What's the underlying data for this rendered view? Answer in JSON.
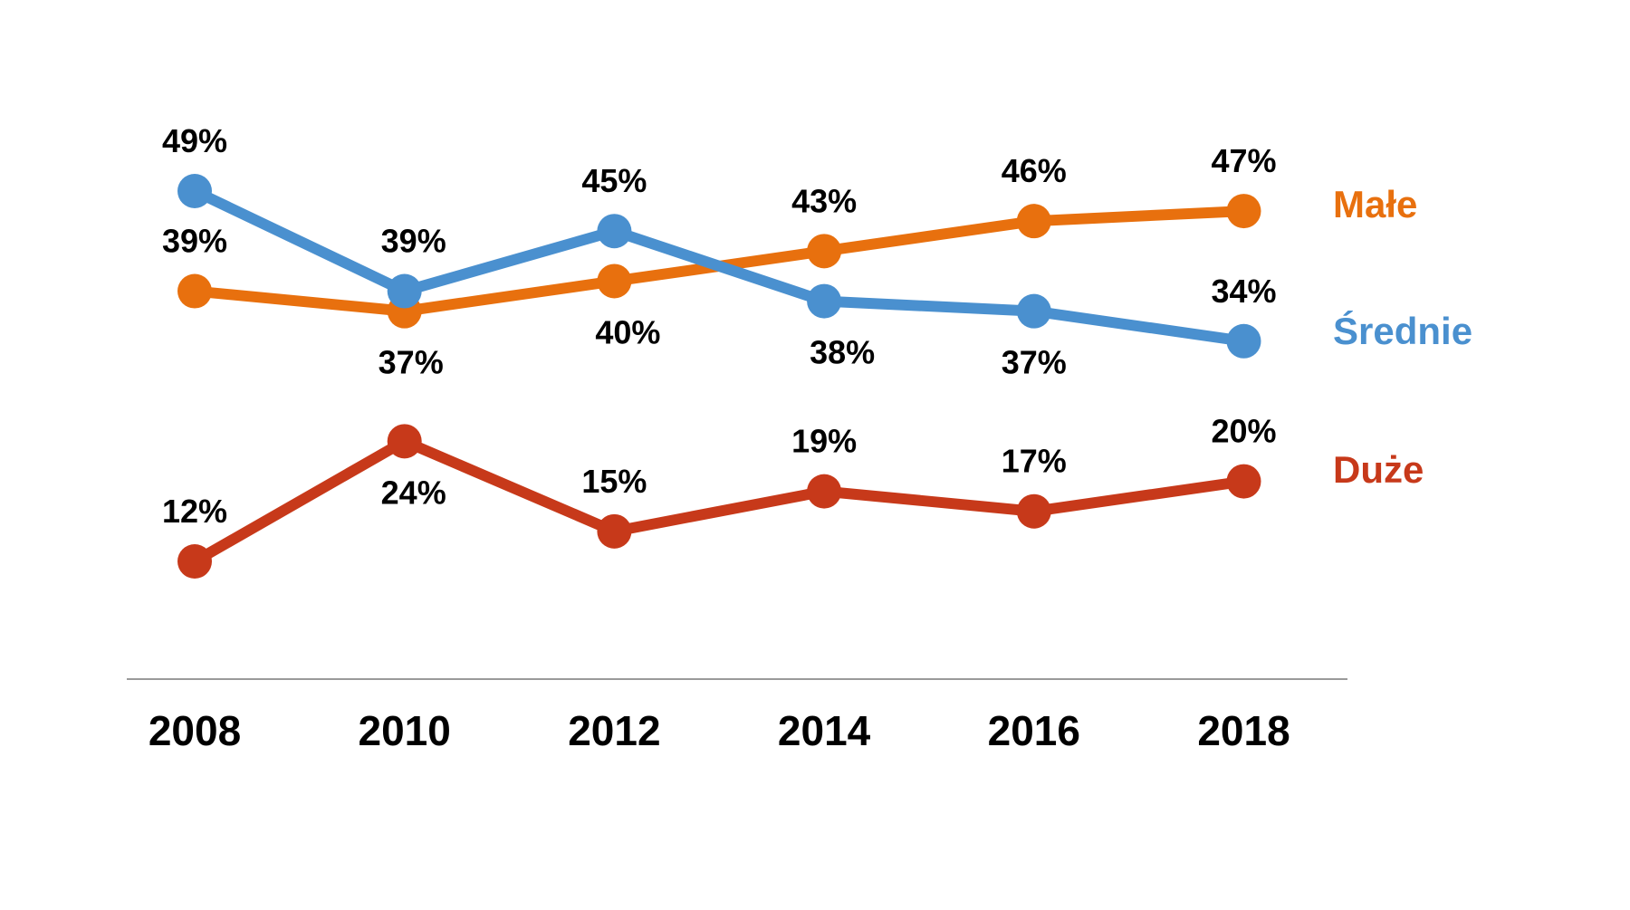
{
  "chart_data": {
    "type": "line",
    "title": "",
    "xlabel": "",
    "ylabel": "",
    "categories": [
      "2008",
      "2010",
      "2012",
      "2014",
      "2016",
      "2018"
    ],
    "ylim": [
      0,
      60
    ],
    "grid": false,
    "legend": "right, inline at line ends",
    "series": [
      {
        "name": "Małe",
        "color": "#e8700e",
        "values": [
          39,
          37,
          40,
          43,
          46,
          47
        ]
      },
      {
        "name": "Średnie",
        "color": "#4a90cf",
        "values": [
          49,
          39,
          45,
          38,
          37,
          34
        ]
      },
      {
        "name": "Duże",
        "color": "#c7391a",
        "values": [
          12,
          24,
          15,
          19,
          17,
          20
        ]
      }
    ],
    "value_suffix": "%"
  }
}
